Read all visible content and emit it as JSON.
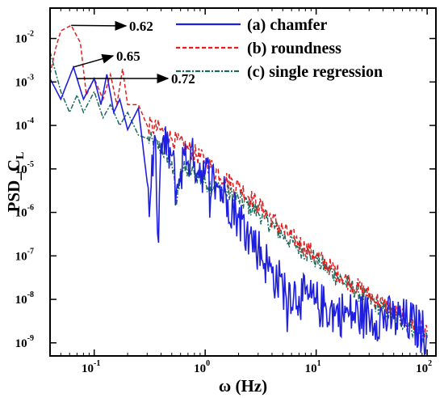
{
  "chart_data": {
    "type": "line",
    "title": "",
    "xlabel": "ω (Hz)",
    "ylabel_main": "PSD_C",
    "ylabel_sub": "L",
    "x_scale": "log",
    "y_scale": "log",
    "xlim": [
      0.04,
      120
    ],
    "ylim": [
      5e-10,
      0.05
    ],
    "x_ticks": [
      {
        "value": 0.1,
        "base": "10",
        "exp": "-1"
      },
      {
        "value": 1,
        "base": "10",
        "exp": "0"
      },
      {
        "value": 10,
        "base": "10",
        "exp": "1"
      },
      {
        "value": 100,
        "base": "10",
        "exp": "2"
      }
    ],
    "y_ticks": [
      {
        "value": 1e-09,
        "base": "10",
        "exp": "-9"
      },
      {
        "value": 1e-08,
        "base": "10",
        "exp": "-8"
      },
      {
        "value": 1e-07,
        "base": "10",
        "exp": "-7"
      },
      {
        "value": 1e-06,
        "base": "10",
        "exp": "-6"
      },
      {
        "value": 1e-05,
        "base": "10",
        "exp": "-5"
      },
      {
        "value": 0.0001,
        "base": "10",
        "exp": "-4"
      },
      {
        "value": 0.001,
        "base": "10",
        "exp": "-3"
      },
      {
        "value": 0.01,
        "base": "10",
        "exp": "-2"
      }
    ],
    "grid": false,
    "legend_position": "top-right",
    "series": [
      {
        "name": "(a) chamfer",
        "color": "#1f1fe0",
        "style": "solid",
        "points": [
          [
            0.04,
            0.0012
          ],
          [
            0.05,
            0.0004
          ],
          [
            0.065,
            0.0022
          ],
          [
            0.08,
            0.0004
          ],
          [
            0.1,
            0.0012
          ],
          [
            0.115,
            0.0003
          ],
          [
            0.13,
            0.0015
          ],
          [
            0.15,
            0.0002
          ],
          [
            0.17,
            0.0004
          ],
          [
            0.2,
            8e-05
          ],
          [
            0.25,
            0.00025
          ],
          [
            0.3,
            5e-06
          ],
          [
            0.32,
            2e-06
          ],
          [
            0.35,
            6e-05
          ],
          [
            0.38,
            2e-07
          ],
          [
            0.4,
            4e-05
          ],
          [
            0.5,
            2e-05
          ],
          [
            0.55,
            3e-06
          ],
          [
            0.65,
            2e-05
          ],
          [
            0.8,
            1.5e-05
          ],
          [
            1.0,
            8e-06
          ],
          [
            1.3,
            4e-06
          ],
          [
            1.6,
            2e-06
          ],
          [
            2.0,
            8e-07
          ],
          [
            2.5,
            3e-07
          ],
          [
            3.0,
            1.5e-07
          ],
          [
            4.0,
            4e-08
          ],
          [
            5.0,
            2e-08
          ],
          [
            7.0,
            1.2e-08
          ],
          [
            10.0,
            8e-09
          ],
          [
            15.0,
            5e-09
          ],
          [
            20.0,
            4.5e-09
          ],
          [
            30.0,
            4e-09
          ],
          [
            50.0,
            3.5e-09
          ],
          [
            70.0,
            3e-09
          ],
          [
            100.0,
            1.5e-09
          ]
        ]
      },
      {
        "name": "(b) roundness",
        "color": "#e02020",
        "style": "dashed",
        "points": [
          [
            0.04,
            0.0015
          ],
          [
            0.045,
            0.006
          ],
          [
            0.05,
            0.015
          ],
          [
            0.062,
            0.02
          ],
          [
            0.075,
            0.008
          ],
          [
            0.085,
            0.0005
          ],
          [
            0.1,
            0.0012
          ],
          [
            0.12,
            0.0004
          ],
          [
            0.14,
            0.0015
          ],
          [
            0.16,
            0.0003
          ],
          [
            0.18,
            0.002
          ],
          [
            0.2,
            0.0003
          ],
          [
            0.25,
            0.0003
          ],
          [
            0.3,
            0.0001
          ],
          [
            0.4,
            8e-05
          ],
          [
            0.5,
            5e-05
          ],
          [
            0.7,
            3e-05
          ],
          [
            1.0,
            1.5e-05
          ],
          [
            1.5,
            6e-06
          ],
          [
            2.0,
            4e-06
          ],
          [
            3.0,
            1.5e-06
          ],
          [
            5.0,
            4e-07
          ],
          [
            10.0,
            1e-07
          ],
          [
            20.0,
            2.5e-08
          ],
          [
            40.0,
            8e-09
          ],
          [
            70.0,
            3e-09
          ],
          [
            100.0,
            1.8e-09
          ]
        ]
      },
      {
        "name": "(c) single regression",
        "color": "#1a6b5c",
        "style": "dashdot",
        "points": [
          [
            0.04,
            0.005
          ],
          [
            0.05,
            0.0006
          ],
          [
            0.06,
            0.0002
          ],
          [
            0.07,
            0.0005
          ],
          [
            0.08,
            0.0002
          ],
          [
            0.1,
            0.0006
          ],
          [
            0.12,
            0.00015
          ],
          [
            0.14,
            0.0003
          ],
          [
            0.17,
            0.0001
          ],
          [
            0.2,
            0.0002
          ],
          [
            0.25,
            6e-05
          ],
          [
            0.3,
            5e-05
          ],
          [
            0.4,
            3e-05
          ],
          [
            0.5,
            1.5e-05
          ],
          [
            0.55,
            1.5e-06
          ],
          [
            0.6,
            1e-05
          ],
          [
            0.8,
            8e-06
          ],
          [
            1.0,
            5e-06
          ],
          [
            1.5,
            3e-06
          ],
          [
            2.0,
            2e-06
          ],
          [
            3.0,
            1e-06
          ],
          [
            5.0,
            3e-07
          ],
          [
            10.0,
            8e-08
          ],
          [
            20.0,
            2e-08
          ],
          [
            40.0,
            6e-09
          ],
          [
            70.0,
            2.5e-09
          ],
          [
            100.0,
            1.3e-09
          ]
        ]
      }
    ],
    "annotations": [
      {
        "text": "0.62",
        "x": 0.062,
        "y": 0.02
      },
      {
        "text": "0.65",
        "x": 0.065,
        "y": 0.0022
      },
      {
        "text": "0.72",
        "x": 0.07,
        "y": 0.0012
      }
    ]
  }
}
